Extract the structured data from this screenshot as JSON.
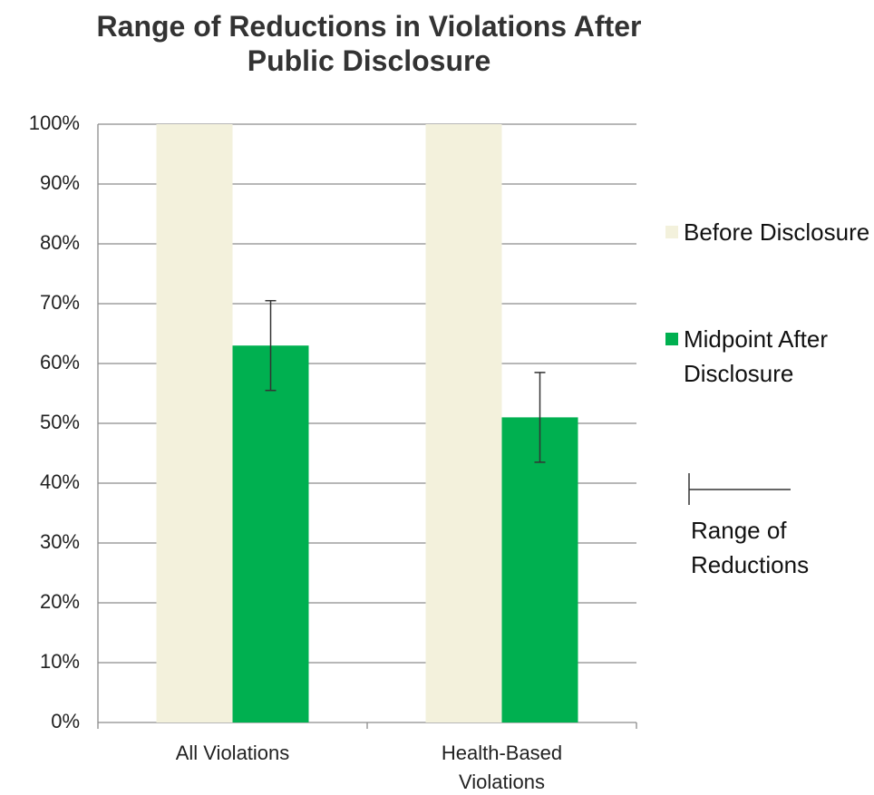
{
  "chart_data": {
    "type": "bar",
    "title": "Range of Reductions in Violations After Public Disclosure",
    "categories": [
      "All Violations",
      "Health-Based Violations"
    ],
    "series": [
      {
        "name": "Before Disclosure",
        "color": "#f3f1dc",
        "values": [
          100,
          100
        ]
      },
      {
        "name": "Midpoint After Disclosure",
        "color": "#00b050",
        "values": [
          63,
          51
        ],
        "errors": [
          7.5,
          7.5
        ]
      }
    ],
    "error_bar_label": "Range of Reductions",
    "ylim": [
      0,
      100
    ],
    "yticks": [
      {
        "value": 0,
        "label": "0%"
      },
      {
        "value": 10,
        "label": "10%"
      },
      {
        "value": 20,
        "label": "20%"
      },
      {
        "value": 30,
        "label": "30%"
      },
      {
        "value": 40,
        "label": "40%"
      },
      {
        "value": 50,
        "label": "50%"
      },
      {
        "value": 60,
        "label": "60%"
      },
      {
        "value": 70,
        "label": "70%"
      },
      {
        "value": 80,
        "label": "80%"
      },
      {
        "value": 90,
        "label": "90%"
      },
      {
        "value": 100,
        "label": "100%"
      }
    ],
    "grid": true
  }
}
